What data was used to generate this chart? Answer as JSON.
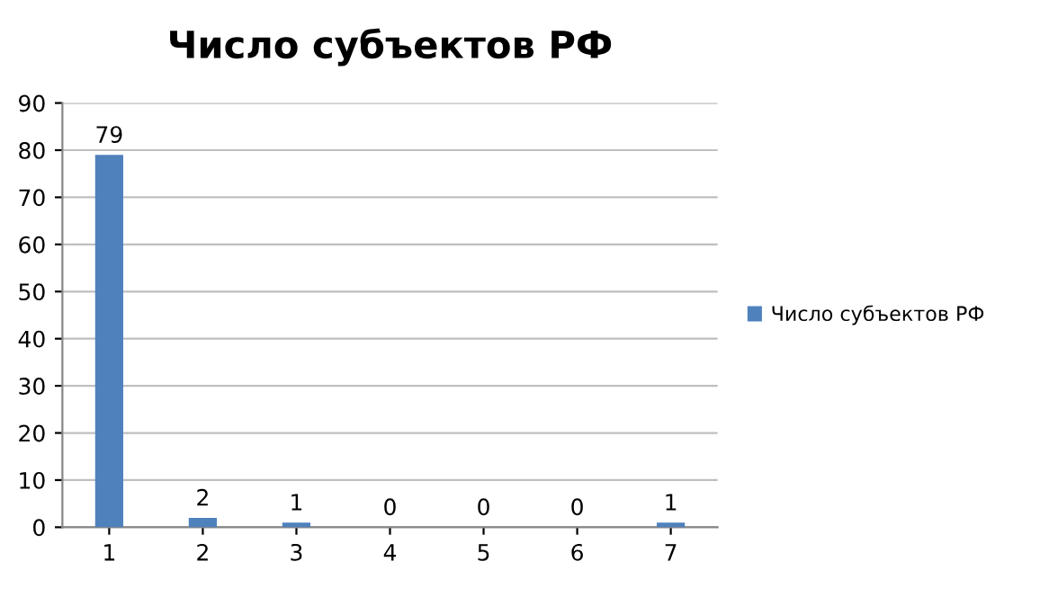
{
  "chart_data": {
    "type": "bar",
    "title": "Число субъектов РФ",
    "categories": [
      "1",
      "2",
      "3",
      "4",
      "5",
      "6",
      "7"
    ],
    "series": [
      {
        "name": "Число субъектов РФ",
        "color": "#4f81bd",
        "values": [
          79,
          2,
          1,
          0,
          0,
          0,
          1
        ]
      }
    ],
    "ylim": [
      0,
      90
    ],
    "yticks": [
      0,
      10,
      20,
      30,
      40,
      50,
      60,
      70,
      80,
      90
    ],
    "grid": "y",
    "legend": "right",
    "data_labels": true
  }
}
